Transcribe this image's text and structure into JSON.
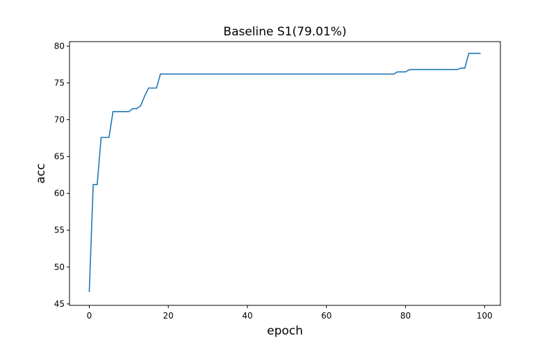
{
  "chart_data": {
    "type": "line",
    "title": "Baseline S1(79.01%)",
    "xlabel": "epoch",
    "ylabel": "acc",
    "xlim": [
      -5,
      104
    ],
    "ylim": [
      44.8,
      80.6
    ],
    "xticks": [
      0,
      20,
      40,
      60,
      80,
      100
    ],
    "yticks": [
      45,
      50,
      55,
      60,
      65,
      70,
      75,
      80
    ],
    "grid": false,
    "legend": "none",
    "line_color": "#1f77b4",
    "series": [
      {
        "x": [
          0,
          1,
          2,
          3,
          4,
          5,
          6,
          7,
          8,
          9,
          10,
          11,
          12,
          13,
          14,
          15,
          16,
          17,
          18,
          19,
          20,
          30,
          40,
          50,
          60,
          70,
          77,
          78,
          79,
          80,
          81,
          82,
          85,
          90,
          93,
          94,
          95,
          96,
          97,
          98,
          99
        ],
        "y": [
          46.6,
          61.2,
          61.2,
          67.6,
          67.6,
          67.6,
          71.1,
          71.1,
          71.1,
          71.1,
          71.1,
          71.5,
          71.5,
          71.9,
          73.2,
          74.3,
          74.3,
          74.3,
          76.2,
          76.2,
          76.2,
          76.2,
          76.2,
          76.2,
          76.2,
          76.2,
          76.2,
          76.5,
          76.5,
          76.5,
          76.8,
          76.8,
          76.8,
          76.8,
          76.8,
          77.0,
          77.0,
          79.0,
          79.0,
          79.0,
          79.0
        ]
      }
    ]
  }
}
